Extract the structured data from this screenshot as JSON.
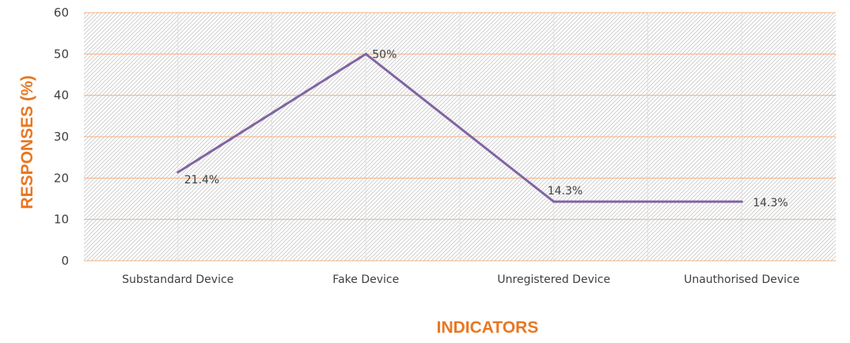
{
  "chart_data": {
    "type": "line",
    "title": "",
    "xlabel": "INDICATORS",
    "ylabel": "RESPONSES (%)",
    "categories": [
      "Substandard Device",
      "Fake Device",
      "Unregistered Device",
      "Unauthorised Device"
    ],
    "series": [
      {
        "values": [
          21.4,
          50,
          14.3,
          14.3
        ],
        "data_labels": [
          "21.4%",
          "50%",
          "14.3%",
          "14.3%"
        ]
      }
    ],
    "ylim": [
      0,
      60
    ],
    "yticks": [
      0,
      10,
      20,
      30,
      40,
      50,
      60
    ],
    "grid": true,
    "legend": "none",
    "colors": {
      "line": "#8064A2",
      "gridline": "#F4B183",
      "hatch": "#C8C8C8",
      "axis_title": "#E87722",
      "text": "#404040"
    }
  }
}
